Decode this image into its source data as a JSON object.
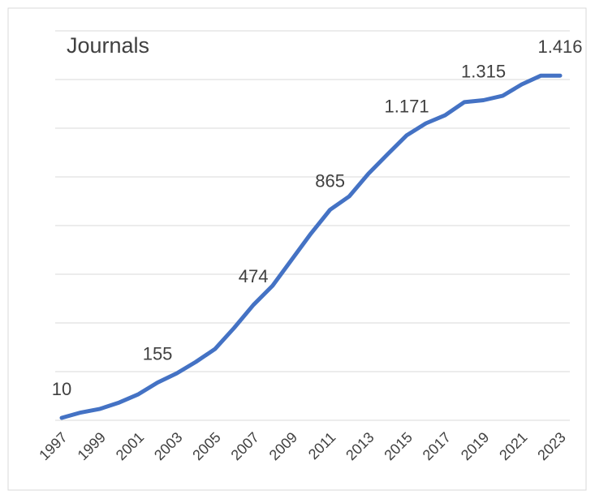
{
  "chart_data": {
    "type": "line",
    "title": "Journals",
    "x": [
      1997,
      1998,
      1999,
      2000,
      2001,
      2002,
      2003,
      2004,
      2005,
      2006,
      2007,
      2008,
      2009,
      2010,
      2011,
      2012,
      2013,
      2014,
      2015,
      2016,
      2017,
      2018,
      2019,
      2020,
      2021,
      2022,
      2023
    ],
    "xlim": [
      1997,
      2023
    ],
    "xticks": [
      1997,
      1999,
      2001,
      2003,
      2005,
      2007,
      2009,
      2011,
      2013,
      2015,
      2017,
      2019,
      2021,
      2023
    ],
    "series": [
      {
        "name": "Journals",
        "color": "#4472c4",
        "values": [
          10,
          32,
          47,
          73,
          107,
          155,
          193,
          240,
          293,
          380,
          474,
          553,
          660,
          767,
          865,
          920,
          1013,
          1093,
          1171,
          1220,
          1253,
          1307,
          1315,
          1333,
          1380,
          1416,
          1416
        ],
        "value_labels": [
          "10",
          null,
          null,
          null,
          null,
          "155",
          null,
          null,
          null,
          null,
          "474",
          null,
          null,
          null,
          "865",
          null,
          null,
          null,
          "1.171",
          null,
          null,
          null,
          "1.315",
          null,
          null,
          null,
          "1.416"
        ]
      }
    ],
    "ylim": [
      0,
      1600
    ],
    "yticks": [
      0,
      200,
      400,
      600,
      800,
      1000,
      1200,
      1400,
      1600
    ],
    "grid": true
  }
}
